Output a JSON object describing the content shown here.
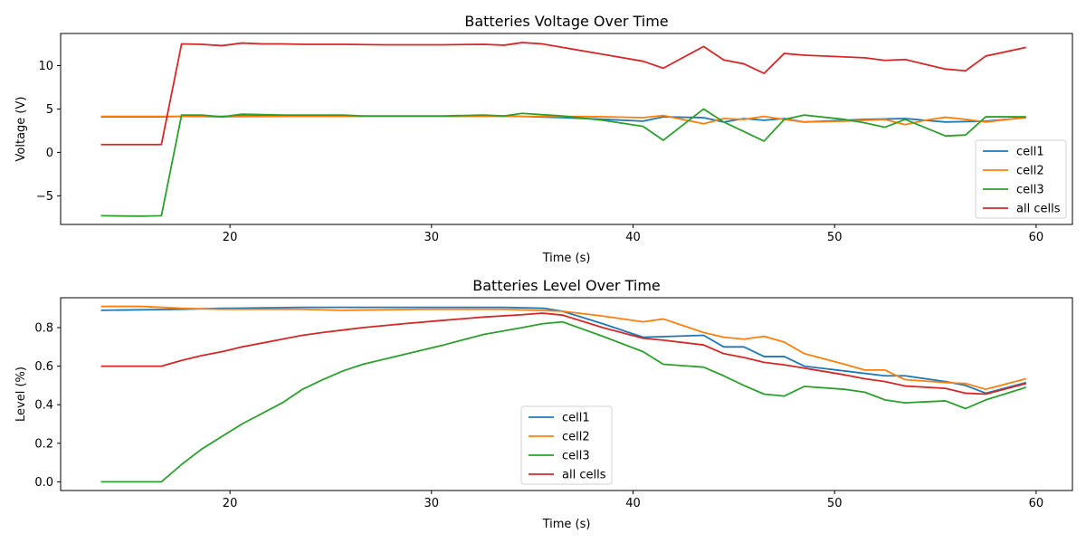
{
  "chart_data": [
    {
      "type": "line",
      "title": "Batteries Voltage Over Time",
      "xlabel": "Time (s)",
      "ylabel": "Voltage (V)",
      "xlim": [
        11.6,
        61.8
      ],
      "ylim": [
        -8.3,
        13.7
      ],
      "xticks": [
        20,
        30,
        40,
        50,
        60
      ],
      "yticks": [
        -5,
        0,
        5,
        10
      ],
      "legend_position": "lower right",
      "series": [
        {
          "name": "cell1",
          "color": "#1f77b4",
          "x": [
            13.6,
            16.6,
            17.6,
            18.6,
            19.6,
            20.6,
            23.6,
            26.6,
            30.6,
            33.6,
            36.6,
            38.6,
            40.5,
            41.5,
            43.5,
            44.5,
            45.5,
            46.5,
            47.5,
            48.5,
            50.5,
            51.5,
            53.5,
            55.5,
            57.5,
            59.5
          ],
          "y": [
            4.1,
            4.1,
            4.15,
            4.15,
            4.15,
            4.2,
            4.2,
            4.15,
            4.15,
            4.2,
            4.0,
            3.8,
            3.6,
            4.1,
            4.0,
            3.5,
            3.9,
            3.7,
            3.9,
            3.5,
            3.7,
            3.8,
            3.9,
            3.5,
            3.6,
            4.0
          ]
        },
        {
          "name": "cell2",
          "color": "#ff7f0e",
          "x": [
            13.6,
            16.6,
            17.6,
            19.6,
            22.6,
            25.6,
            29.6,
            33.6,
            36.6,
            38.6,
            40.5,
            41.5,
            43.5,
            44.5,
            45.5,
            46.5,
            47.5,
            48.5,
            50.5,
            52.5,
            53.5,
            54.5,
            55.5,
            56.5,
            57.5,
            59.5
          ],
          "y": [
            4.15,
            4.15,
            4.15,
            4.1,
            4.15,
            4.15,
            4.15,
            4.15,
            4.15,
            4.1,
            4.0,
            4.25,
            3.3,
            3.9,
            3.8,
            4.15,
            3.8,
            3.5,
            3.6,
            3.8,
            3.2,
            3.7,
            4.05,
            3.8,
            3.5,
            4.05
          ]
        },
        {
          "name": "cell3",
          "color": "#2ca02c",
          "x": [
            13.6,
            15.6,
            16.6,
            17.6,
            18.6,
            19.6,
            20.6,
            22.6,
            25.6,
            26.6,
            30.6,
            32.6,
            33.6,
            34.5,
            36.5,
            38.5,
            40.5,
            41.5,
            43.5,
            44.5,
            46.5,
            47.5,
            48.5,
            50.5,
            51.5,
            52.5,
            53.5,
            55.5,
            56.5,
            57.5,
            59.5
          ],
          "y": [
            -7.3,
            -7.35,
            -7.3,
            4.3,
            4.3,
            4.1,
            4.4,
            4.3,
            4.3,
            4.2,
            4.2,
            4.3,
            4.2,
            4.5,
            4.2,
            3.7,
            3.0,
            1.4,
            5.0,
            3.5,
            1.3,
            3.8,
            4.3,
            3.8,
            3.4,
            2.9,
            3.8,
            1.9,
            2.0,
            4.1,
            4.1
          ]
        },
        {
          "name": "all cells",
          "color": "#d62728",
          "x": [
            13.6,
            16.6,
            17.6,
            18.6,
            19.6,
            20.6,
            21.6,
            22.6,
            23.6,
            25.6,
            27.6,
            30.6,
            32.6,
            33.6,
            34.5,
            35.5,
            36.5,
            38.5,
            40.5,
            41.5,
            43.5,
            44.5,
            45.5,
            46.5,
            47.5,
            48.5,
            50.5,
            51.5,
            52.5,
            53.5,
            55.5,
            56.5,
            57.5,
            59.5
          ],
          "y": [
            0.9,
            0.9,
            12.5,
            12.45,
            12.3,
            12.6,
            12.5,
            12.5,
            12.45,
            12.45,
            12.4,
            12.4,
            12.45,
            12.35,
            12.65,
            12.5,
            12.1,
            11.3,
            10.5,
            9.7,
            12.2,
            10.65,
            10.2,
            9.1,
            11.4,
            11.2,
            11.0,
            10.9,
            10.6,
            10.7,
            9.6,
            9.4,
            11.1,
            12.1
          ]
        }
      ]
    },
    {
      "type": "line",
      "title": "Batteries Level Over Time",
      "xlabel": "Time (s)",
      "ylabel": "Level (%)",
      "xlim": [
        11.6,
        61.8
      ],
      "ylim": [
        -0.045,
        0.955
      ],
      "xticks": [
        20,
        30,
        40,
        50,
        60
      ],
      "yticks": [
        0.0,
        0.2,
        0.4,
        0.6,
        0.8
      ],
      "legend_position": "lower center",
      "series": [
        {
          "name": "cell1",
          "color": "#1f77b4",
          "x": [
            13.6,
            17.6,
            19.6,
            23.6,
            27.6,
            31.6,
            33.6,
            35.6,
            36.5,
            38.5,
            40.5,
            43.5,
            44.5,
            45.5,
            46.5,
            47.5,
            48.5,
            50.5,
            52.5,
            53.5,
            55.5,
            56.5,
            57.5,
            59.5
          ],
          "y": [
            0.89,
            0.895,
            0.9,
            0.905,
            0.905,
            0.905,
            0.905,
            0.9,
            0.885,
            0.82,
            0.75,
            0.76,
            0.7,
            0.7,
            0.65,
            0.65,
            0.6,
            0.575,
            0.55,
            0.55,
            0.52,
            0.5,
            0.46,
            0.515
          ]
        },
        {
          "name": "cell2",
          "color": "#ff7f0e",
          "x": [
            13.6,
            15.6,
            17.6,
            19.6,
            23.6,
            25.6,
            29.6,
            33.6,
            36.5,
            38.5,
            40.5,
            41.5,
            43.5,
            44.5,
            45.5,
            46.5,
            47.5,
            48.5,
            50.5,
            51.5,
            52.5,
            53.5,
            55.5,
            56.5,
            57.5,
            59.5
          ],
          "y": [
            0.91,
            0.91,
            0.9,
            0.895,
            0.895,
            0.89,
            0.895,
            0.895,
            0.885,
            0.86,
            0.83,
            0.845,
            0.775,
            0.75,
            0.74,
            0.755,
            0.725,
            0.665,
            0.61,
            0.58,
            0.58,
            0.53,
            0.515,
            0.51,
            0.48,
            0.535
          ]
        },
        {
          "name": "cell3",
          "color": "#2ca02c",
          "x": [
            13.6,
            16.6,
            17.6,
            18.6,
            20.6,
            22.6,
            23.6,
            24.6,
            25.6,
            26.6,
            28.6,
            30.6,
            32.6,
            34.5,
            35.5,
            36.5,
            38.5,
            40.5,
            41.5,
            43.5,
            44.5,
            45.5,
            46.5,
            47.5,
            48.5,
            50.5,
            51.5,
            52.5,
            53.5,
            55.5,
            56.5,
            57.5,
            59.5
          ],
          "y": [
            0.0,
            0.0,
            0.09,
            0.17,
            0.3,
            0.41,
            0.48,
            0.53,
            0.575,
            0.61,
            0.66,
            0.71,
            0.765,
            0.8,
            0.82,
            0.83,
            0.755,
            0.675,
            0.61,
            0.595,
            0.55,
            0.5,
            0.455,
            0.445,
            0.495,
            0.48,
            0.465,
            0.425,
            0.41,
            0.42,
            0.38,
            0.425,
            0.49
          ]
        },
        {
          "name": "all cells",
          "color": "#d62728",
          "x": [
            13.6,
            15.6,
            16.6,
            17.6,
            18.6,
            19.6,
            20.6,
            21.6,
            22.6,
            23.6,
            24.6,
            26.6,
            28.6,
            30.6,
            32.6,
            34.5,
            35.5,
            36.5,
            38.5,
            40.5,
            41.5,
            43.5,
            44.5,
            45.5,
            46.5,
            47.5,
            48.5,
            50.5,
            51.5,
            52.5,
            53.5,
            55.5,
            56.5,
            57.5,
            59.5
          ],
          "y": [
            0.6,
            0.6,
            0.6,
            0.63,
            0.655,
            0.675,
            0.7,
            0.72,
            0.74,
            0.76,
            0.775,
            0.8,
            0.82,
            0.838,
            0.855,
            0.867,
            0.875,
            0.865,
            0.8,
            0.745,
            0.735,
            0.71,
            0.665,
            0.645,
            0.62,
            0.607,
            0.59,
            0.555,
            0.535,
            0.52,
            0.497,
            0.485,
            0.46,
            0.455,
            0.51
          ]
        }
      ]
    }
  ]
}
